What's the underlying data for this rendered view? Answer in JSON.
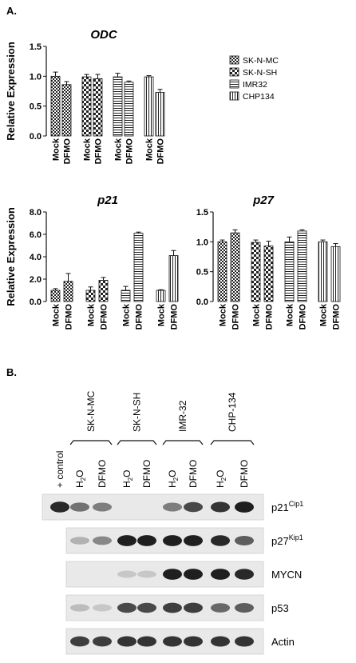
{
  "panel_a_label": "A.",
  "panel_b_label": "B.",
  "ylabel": "Relative Expression",
  "xticks": [
    "Mock",
    "DFMO"
  ],
  "legend": [
    {
      "name": "SK-N-MC",
      "pattern": "checker-small"
    },
    {
      "name": "SK-N-SH",
      "pattern": "checker-large"
    },
    {
      "name": "IMR32",
      "pattern": "horizontal"
    },
    {
      "name": "CHP134",
      "pattern": "vertical"
    }
  ],
  "chart_data": [
    {
      "type": "bar",
      "title": "ODC",
      "ylabel": "Relative Expression",
      "ylim": [
        0,
        1.5
      ],
      "yticks": [
        "0.0",
        "0.5",
        "1.0",
        "1.5"
      ],
      "categories": [
        "Mock",
        "DFMO"
      ],
      "series": [
        {
          "name": "SK-N-MC",
          "values": [
            1.0,
            0.86
          ],
          "errors": [
            0.07,
            0.05
          ]
        },
        {
          "name": "SK-N-SH",
          "values": [
            0.99,
            0.96
          ],
          "errors": [
            0.04,
            0.07
          ]
        },
        {
          "name": "IMR32",
          "values": [
            0.99,
            0.9
          ],
          "errors": [
            0.06,
            0.02
          ]
        },
        {
          "name": "CHP134",
          "values": [
            0.99,
            0.73
          ],
          "errors": [
            0.02,
            0.05
          ]
        }
      ]
    },
    {
      "type": "bar",
      "title": "p21",
      "ylabel": "Relative Expression",
      "ylim": [
        0,
        8.0
      ],
      "yticks": [
        "0.0",
        "2.0",
        "4.0",
        "6.0",
        "8.0"
      ],
      "categories": [
        "Mock",
        "DFMO"
      ],
      "series": [
        {
          "name": "SK-N-MC",
          "values": [
            1.0,
            1.8
          ],
          "errors": [
            0.15,
            0.7
          ]
        },
        {
          "name": "SK-N-SH",
          "values": [
            1.0,
            1.9
          ],
          "errors": [
            0.3,
            0.25
          ]
        },
        {
          "name": "IMR32",
          "values": [
            1.0,
            6.1
          ],
          "errors": [
            0.35,
            0.1
          ]
        },
        {
          "name": "CHP134",
          "values": [
            1.0,
            4.1
          ],
          "errors": [
            0.05,
            0.45
          ]
        }
      ]
    },
    {
      "type": "bar",
      "title": "p27",
      "ylim": [
        0,
        1.5
      ],
      "yticks": [
        "0.0",
        "0.5",
        "1.0",
        "1.5"
      ],
      "categories": [
        "Mock",
        "DFMO"
      ],
      "series": [
        {
          "name": "SK-N-MC",
          "values": [
            1.0,
            1.15
          ],
          "errors": [
            0.03,
            0.05
          ]
        },
        {
          "name": "SK-N-SH",
          "values": [
            0.99,
            0.93
          ],
          "errors": [
            0.04,
            0.08
          ]
        },
        {
          "name": "IMR32",
          "values": [
            1.0,
            1.18
          ],
          "errors": [
            0.08,
            0.02
          ]
        },
        {
          "name": "CHP134",
          "values": [
            1.0,
            0.92
          ],
          "errors": [
            0.03,
            0.05
          ]
        }
      ]
    }
  ],
  "blot": {
    "cell_lines": [
      "SK-N-MC",
      "SK-N-SH",
      "IMR-32",
      "CHP-134"
    ],
    "control_label": "+ control",
    "h2o_label": "H",
    "h2o_sub": "2",
    "h2o_end": "O",
    "dfmo_label": "DFMO",
    "rows": [
      {
        "label": "p21",
        "sup": "Cip1"
      },
      {
        "label": "p27",
        "sup": "Kip1"
      },
      {
        "label": "MYCN",
        "sup": ""
      },
      {
        "label": "p53",
        "sup": ""
      },
      {
        "label": "Actin",
        "sup": ""
      }
    ]
  }
}
